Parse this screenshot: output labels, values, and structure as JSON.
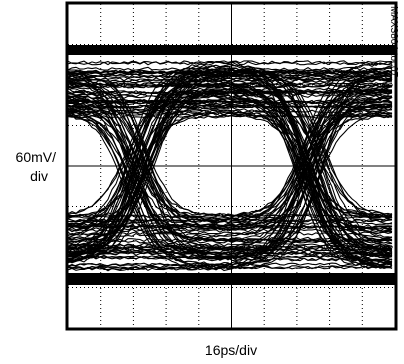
{
  "y_axis_label": [
    "60mV/",
    "div"
  ],
  "x_axis_label": "16ps/div",
  "figure_id": "MAX3804 toc07"
}
